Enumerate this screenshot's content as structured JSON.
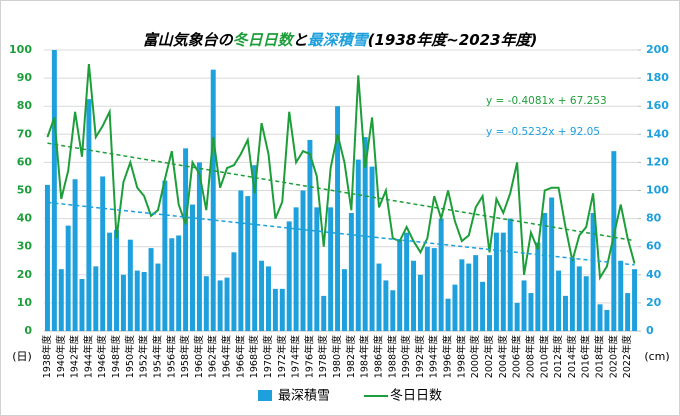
{
  "chart_data": {
    "type": "bar_line",
    "title": [
      "富山気象台の",
      "冬日日数",
      "と",
      "最深積雪",
      "(1938年度~2023年度)"
    ],
    "title_colors": [
      "#000000",
      "#1e9e3a",
      "#000000",
      "#1ea0dc",
      "#000000"
    ],
    "y_unit": "(日)",
    "y2_unit": "(cm)",
    "categories": [
      "1938年度",
      null,
      "1940年度",
      null,
      "1942年度",
      null,
      "1944年度",
      null,
      "1946年度",
      null,
      "1948年度",
      null,
      "1950年度",
      null,
      "1952年度",
      null,
      "1954年度",
      null,
      "1956年度",
      null,
      "1958年度",
      null,
      "1960年度",
      null,
      "1962年度",
      null,
      "1964年度",
      null,
      "1966年度",
      null,
      "1968年度",
      null,
      "1970年度",
      null,
      "1972年度",
      null,
      "1974年度",
      null,
      "1976年度",
      null,
      "1978年度",
      null,
      "1980年度",
      null,
      "1982年度",
      null,
      "1984年度",
      null,
      "1986年度",
      null,
      "1988年度",
      null,
      "1990年度",
      null,
      "1992年度",
      null,
      "1994年度",
      null,
      "1996年度",
      null,
      "1998年度",
      null,
      "2000年度",
      null,
      "2002年度",
      null,
      "2004年度",
      null,
      "2006年度",
      null,
      "2008年度",
      null,
      "2010年度",
      null,
      "2012年度",
      null,
      "2014年度",
      null,
      "2016年度",
      null,
      "2018年度",
      null,
      "2020年度",
      null,
      "2022年度",
      null
    ],
    "series": [
      {
        "name": "最深積雪",
        "color": "#1ea0dc",
        "kind": "bar",
        "axis": "y2",
        "values": [
          104,
          200,
          44,
          75,
          108,
          37,
          165,
          46,
          110,
          70,
          72,
          40,
          65,
          43,
          42,
          59,
          48,
          107,
          66,
          68,
          130,
          90,
          120,
          39,
          186,
          36,
          38,
          56,
          100,
          96,
          118,
          50,
          46,
          30,
          30,
          78,
          88,
          100,
          136,
          88,
          25,
          88,
          160,
          44,
          84,
          122,
          138,
          117,
          48,
          36,
          29,
          65,
          70,
          50,
          40,
          60,
          59,
          80,
          23,
          33,
          51,
          48,
          54,
          35,
          54,
          70,
          70,
          80,
          20,
          36,
          27,
          63,
          84,
          95,
          43,
          25,
          52,
          46,
          39,
          84,
          19,
          15,
          128,
          50,
          27,
          44
        ]
      },
      {
        "name": "冬日日数",
        "color": "#1e9e3a",
        "kind": "line",
        "axis": "y",
        "values": [
          69,
          76,
          47,
          57,
          78,
          62,
          95,
          69,
          73,
          78,
          33,
          53,
          60,
          51,
          48,
          41,
          43,
          54,
          64,
          45,
          38,
          60,
          56,
          43,
          69,
          51,
          58,
          59,
          63,
          68,
          49,
          74,
          63,
          40,
          46,
          78,
          60,
          64,
          63,
          55,
          30,
          58,
          70,
          60,
          43,
          91,
          58,
          76,
          44,
          50,
          33,
          32,
          37,
          32,
          28,
          33,
          48,
          40,
          50,
          39,
          32,
          34,
          44,
          48,
          28,
          47,
          42,
          49,
          60,
          20,
          35,
          29,
          50,
          51,
          51,
          37,
          25,
          34,
          37,
          49,
          19,
          23,
          34,
          45,
          33,
          24
        ]
      }
    ],
    "trendlines": [
      {
        "label": "y = -0.4081x + 67.253",
        "slope": -0.4081,
        "intercept": 67.253,
        "axis": "y",
        "color": "#1e9e3a"
      },
      {
        "label": "y = -0.5232x + 92.05",
        "slope": -0.5232,
        "intercept": 92.05,
        "axis": "y2",
        "color": "#1ea0dc"
      }
    ],
    "ylim": [
      0,
      100
    ],
    "yticks": [
      0,
      10,
      20,
      30,
      40,
      50,
      60,
      70,
      80,
      90,
      100
    ],
    "y2lim": [
      0,
      200
    ],
    "y2ticks": [
      0,
      20,
      40,
      60,
      80,
      100,
      120,
      140,
      160,
      180,
      200
    ],
    "grid": true,
    "legend": "bottom"
  }
}
